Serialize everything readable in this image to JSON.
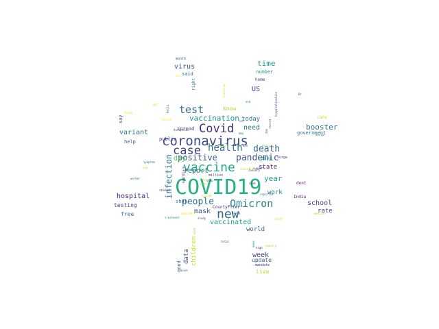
{
  "cloud": {
    "words": [
      {
        "text": "COVID19",
        "color": "#29b082"
      },
      {
        "text": "coronavirus",
        "color": "#3f4a8a"
      },
      {
        "text": "new",
        "color": "#2f6c8e"
      },
      {
        "text": "vaccine",
        "color": "#26a784"
      },
      {
        "text": "case",
        "color": "#433e85"
      },
      {
        "text": "Covid",
        "color": "#472c7a"
      },
      {
        "text": "Omicron",
        "color": "#27808e"
      },
      {
        "text": "health",
        "color": "#2c728e"
      },
      {
        "text": "death",
        "color": "#32648e"
      },
      {
        "text": "pandemic",
        "color": "#3b528b"
      },
      {
        "text": "test",
        "color": "#2e6e8e"
      },
      {
        "text": "people",
        "color": "#2d708e"
      },
      {
        "text": "positive",
        "color": "#38598c"
      },
      {
        "text": "infection",
        "color": "#2a778e"
      },
      {
        "text": "vaccination",
        "color": "#20928c"
      },
      {
        "text": "year",
        "color": "#1fa187"
      },
      {
        "text": "time",
        "color": "#1f988b"
      },
      {
        "text": "hospital",
        "color": "#482576"
      },
      {
        "text": "school",
        "color": "#3e4989"
      },
      {
        "text": "day",
        "color": "#56c667"
      },
      {
        "text": "booster",
        "color": "#2e6f8e"
      },
      {
        "text": "report",
        "color": "#2f6b8e"
      },
      {
        "text": "week",
        "color": "#433e85"
      },
      {
        "text": "state",
        "color": "#481f70"
      },
      {
        "text": "mask",
        "color": "#355f8d"
      },
      {
        "text": "vaccinated",
        "color": "#1fa188"
      },
      {
        "text": "virus",
        "color": "#3b528b"
      },
      {
        "text": "variant",
        "color": "#2a788e"
      },
      {
        "text": "US",
        "color": "#3e4a89"
      },
      {
        "text": "today",
        "color": "#2c728e"
      },
      {
        "text": "need",
        "color": "#2e6e8e"
      },
      {
        "text": "world",
        "color": "#355f8d"
      },
      {
        "text": "work",
        "color": "#277f8e"
      },
      {
        "text": "rate",
        "color": "#3f4889"
      },
      {
        "text": "testing",
        "color": "#404588"
      },
      {
        "text": "free",
        "color": "#2c738e"
      },
      {
        "text": "data",
        "color": "#3b528b"
      },
      {
        "text": "children",
        "color": "#cde11d"
      },
      {
        "text": "update",
        "color": "#355f8d"
      },
      {
        "text": "live",
        "color": "#b5de2b"
      },
      {
        "text": "good",
        "color": "#404688"
      },
      {
        "text": "help",
        "color": "#3a548c"
      },
      {
        "text": "say",
        "color": "#3e4989"
      },
      {
        "text": "know",
        "color": "#a5db36"
      },
      {
        "text": "spread",
        "color": "#3e4989"
      },
      {
        "text": "public",
        "color": "#3f4788"
      },
      {
        "text": "government",
        "color": "#2c728e"
      },
      {
        "text": "shot",
        "color": "#31688e"
      },
      {
        "text": "dose",
        "color": "#1f9e89"
      },
      {
        "text": "number",
        "color": "#1f9a8a"
      },
      {
        "text": "home",
        "color": "#433e85"
      },
      {
        "text": "said",
        "color": "#2e6d8e"
      },
      {
        "text": "right",
        "color": "#2b748e"
      },
      {
        "text": "care",
        "color": "#bddf26"
      },
      {
        "text": "dont",
        "color": "#471063"
      },
      {
        "text": "India",
        "color": "#481a6c"
      },
      {
        "text": "mandate",
        "color": "#482475"
      },
      {
        "text": "CountyFlier",
        "color": "#46327e"
      },
      {
        "text": "million",
        "color": "#404588"
      },
      {
        "text": "month",
        "color": "#3b528b"
      },
      {
        "text": "surge",
        "color": "#443a83"
      },
      {
        "text": "patient",
        "color": "#fde725"
      },
      {
        "text": "student",
        "color": "#482475"
      },
      {
        "text": "Australia",
        "color": "#3e4c8a"
      },
      {
        "text": "January",
        "color": "#3f4788"
      },
      {
        "text": "risk",
        "color": "#481b6d"
      },
      {
        "text": "reported",
        "color": "#2d718e"
      },
      {
        "text": "country",
        "color": "#a2da37"
      },
      {
        "text": "daily",
        "color": "#7ad151"
      },
      {
        "text": "high",
        "color": "#472a7a"
      },
      {
        "text": "staff",
        "color": "#d8e219"
      },
      {
        "text": "medical",
        "color": "#addc30"
      },
      {
        "text": "Delta",
        "color": "#2c738e"
      },
      {
        "text": "record",
        "color": "#3b528b"
      },
      {
        "text": "study",
        "color": "#443983"
      },
      {
        "text": "going",
        "color": "#3e4a89"
      },
      {
        "text": "treatment",
        "color": "#1e9b8a"
      },
      {
        "text": "thing",
        "color": "#e5e419"
      },
      {
        "text": "end",
        "color": "#21918c"
      },
      {
        "text": "let",
        "color": "#3d4e8a"
      },
      {
        "text": "stop",
        "color": "#3f4788"
      },
      {
        "text": "hour",
        "color": "#b8de29"
      },
      {
        "text": "look",
        "color": "#2a788e"
      },
      {
        "text": "total",
        "color": "#3b528b"
      },
      {
        "text": "sick",
        "color": "#8bd646"
      },
      {
        "text": "continue",
        "color": "#d2e21b"
      },
      {
        "text": "worker",
        "color": "#31688e"
      },
      {
        "text": "doctor",
        "color": "#2d708e"
      },
      {
        "text": "symptom",
        "color": "#277f8e"
      },
      {
        "text": "may",
        "color": "#2a788e"
      },
      {
        "text": "now",
        "color": "#c0df25"
      },
      {
        "text": "want",
        "color": "#7fd34e"
      },
      {
        "text": "get",
        "color": "#d5e21a"
      },
      {
        "text": "see",
        "color": "#fde725"
      },
      {
        "text": "Dr",
        "color": "#443983"
      },
      {
        "text": "Jan",
        "color": "#3f4788"
      },
      {
        "text": "healthcare",
        "color": "#440154"
      },
      {
        "text": "hospitalization",
        "color": "#46337f"
      },
      {
        "text": "soon",
        "color": "#9bd93c"
      },
      {
        "text": "health",
        "color": "#fde725"
      },
      {
        "text": "make",
        "color": "#1f948c"
      },
      {
        "text": "isolation",
        "color": "#c5e021"
      },
      {
        "text": "spread",
        "color": "#b0dd2f"
      },
      {
        "text": "case",
        "color": "#a8db34"
      },
      {
        "text": "use",
        "color": "#2c728e"
      },
      {
        "text": "support",
        "color": "#482878"
      }
    ]
  }
}
